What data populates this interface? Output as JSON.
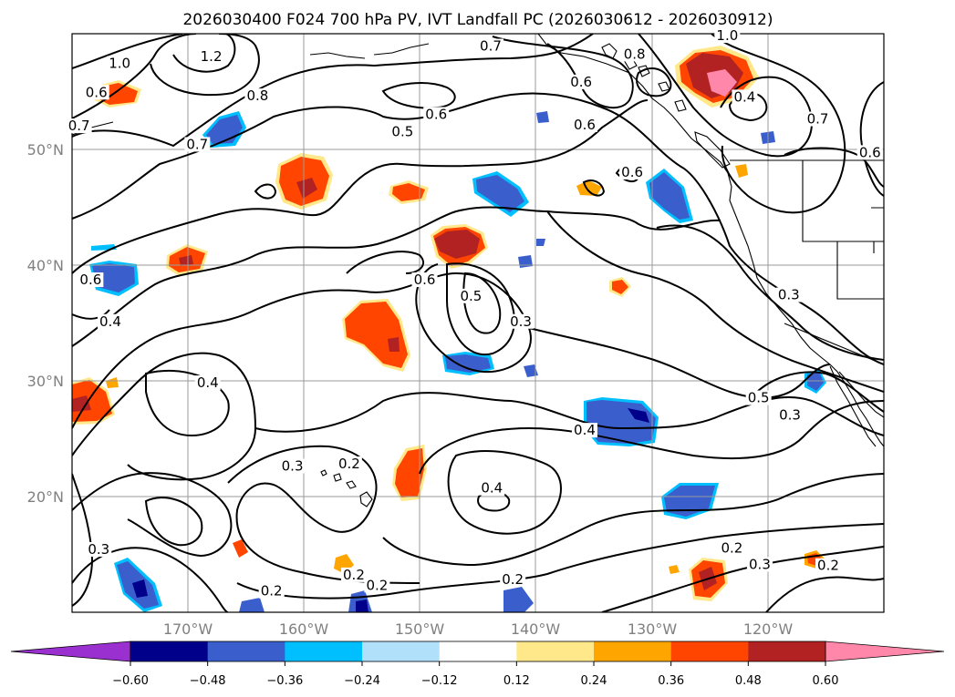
{
  "title": "2026030400 F024 700 hPa PV, IVT Landfall PC (2026030612 - 2026030912)",
  "map": {
    "lon_range": [
      -180,
      -110
    ],
    "lat_range": [
      10,
      60
    ],
    "lon_ticks": [
      -170,
      -160,
      -150,
      -140,
      -130,
      -120
    ],
    "lon_tick_labels": [
      "170°W",
      "160°W",
      "150°W",
      "140°W",
      "130°W",
      "120°W"
    ],
    "lat_ticks": [
      20,
      30,
      40,
      50
    ],
    "lat_tick_labels": [
      "20°N",
      "30°N",
      "40°N",
      "50°N"
    ]
  },
  "colorbar": {
    "levels": [
      -0.6,
      -0.48,
      -0.36,
      -0.24,
      -0.12,
      0.12,
      0.24,
      0.36,
      0.48,
      0.6
    ],
    "tick_labels": [
      "−0.60",
      "−0.48",
      "−0.36",
      "−0.24",
      "−0.12",
      "0.12",
      "0.24",
      "0.36",
      "0.48",
      "0.60"
    ],
    "colors": [
      "#9b30d0",
      "#00008b",
      "#3a5fcd",
      "#00bfff",
      "#b0e0fa",
      "#ffffff",
      "#ffe88a",
      "#ffa500",
      "#ff4500",
      "#b22222",
      "#ff88aa"
    ]
  },
  "contour_labels": [
    {
      "text": "1.0",
      "lon": -175.9,
      "lat": 57.2
    },
    {
      "text": "1.2",
      "lon": -168.0,
      "lat": 57.8
    },
    {
      "text": "0.8",
      "lon": -164.0,
      "lat": 54.4
    },
    {
      "text": "0.6",
      "lon": -177.9,
      "lat": 54.7
    },
    {
      "text": "0.7",
      "lon": -179.4,
      "lat": 51.8
    },
    {
      "text": "0.7",
      "lon": -169.2,
      "lat": 50.2
    },
    {
      "text": "0.6",
      "lon": -148.6,
      "lat": 52.8
    },
    {
      "text": "0.5",
      "lon": -151.5,
      "lat": 51.3
    },
    {
      "text": "0.7",
      "lon": -143.9,
      "lat": 58.7
    },
    {
      "text": "0.8",
      "lon": -131.5,
      "lat": 58.0
    },
    {
      "text": "0.6",
      "lon": -136.1,
      "lat": 55.6
    },
    {
      "text": "1.0",
      "lon": -123.5,
      "lat": 59.6
    },
    {
      "text": "0.6",
      "lon": -135.8,
      "lat": 51.9
    },
    {
      "text": "0.6",
      "lon": -131.7,
      "lat": 47.8
    },
    {
      "text": "0.4",
      "lon": -122.0,
      "lat": 54.3
    },
    {
      "text": "0.7",
      "lon": -115.7,
      "lat": 52.4
    },
    {
      "text": "0.6",
      "lon": -111.2,
      "lat": 49.5
    },
    {
      "text": "0.6",
      "lon": -178.4,
      "lat": 38.5
    },
    {
      "text": "0.4",
      "lon": -176.7,
      "lat": 34.9
    },
    {
      "text": "0.4",
      "lon": -168.3,
      "lat": 29.6
    },
    {
      "text": "0.6",
      "lon": -149.6,
      "lat": 38.5
    },
    {
      "text": "0.5",
      "lon": -145.6,
      "lat": 37.1
    },
    {
      "text": "0.3",
      "lon": -141.3,
      "lat": 34.9
    },
    {
      "text": "0.3",
      "lon": -118.2,
      "lat": 37.2
    },
    {
      "text": "0.5",
      "lon": -120.8,
      "lat": 28.3
    },
    {
      "text": "0.3",
      "lon": -118.1,
      "lat": 26.8
    },
    {
      "text": "0.4",
      "lon": -135.8,
      "lat": 25.5
    },
    {
      "text": "0.3",
      "lon": -161.0,
      "lat": 22.4
    },
    {
      "text": "0.2",
      "lon": -156.1,
      "lat": 22.6
    },
    {
      "text": "0.4",
      "lon": -143.8,
      "lat": 20.5
    },
    {
      "text": "0.3",
      "lon": -177.7,
      "lat": 15.2
    },
    {
      "text": "0.2",
      "lon": -155.7,
      "lat": 13.0
    },
    {
      "text": "0.2",
      "lon": -153.7,
      "lat": 12.1
    },
    {
      "text": "0.2",
      "lon": -162.8,
      "lat": 11.6
    },
    {
      "text": "0.2",
      "lon": -142.0,
      "lat": 12.6
    },
    {
      "text": "0.2",
      "lon": -123.1,
      "lat": 15.3
    },
    {
      "text": "0.3",
      "lon": -120.7,
      "lat": 13.9
    },
    {
      "text": "0.2",
      "lon": -114.8,
      "lat": 13.8
    }
  ]
}
